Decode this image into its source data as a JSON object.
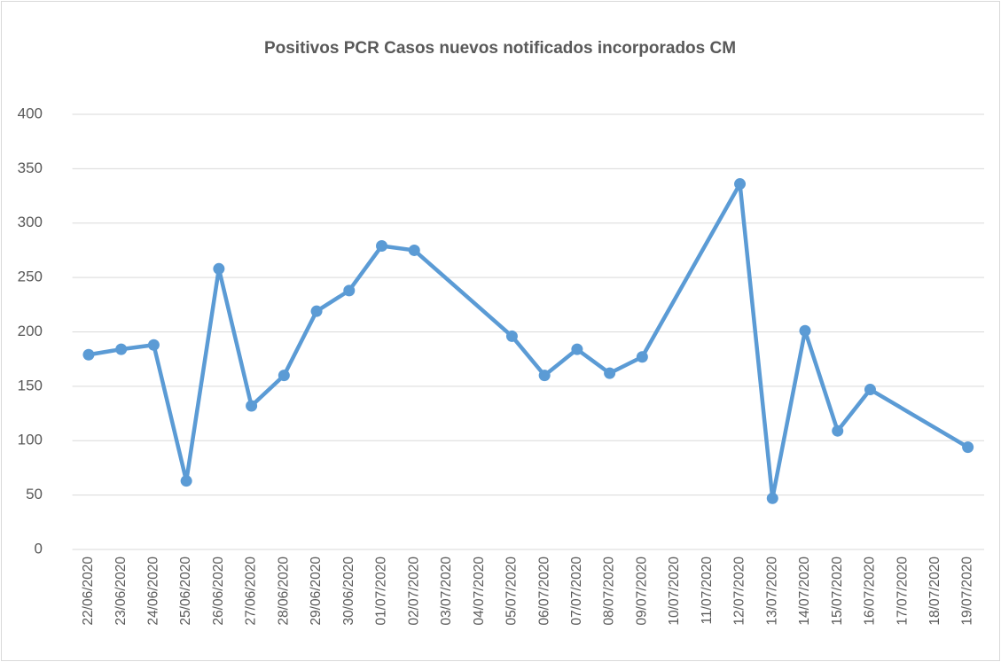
{
  "chart_data": {
    "type": "line",
    "title": "Positivos PCR Casos nuevos notificados incorporados CM",
    "categories": [
      "22/06/2020",
      "23/06/2020",
      "24/06/2020",
      "25/06/2020",
      "26/06/2020",
      "27/06/2020",
      "28/06/2020",
      "29/06/2020",
      "30/06/2020",
      "01/07/2020",
      "02/07/2020",
      "03/07/2020",
      "04/07/2020",
      "05/07/2020",
      "06/07/2020",
      "07/07/2020",
      "08/07/2020",
      "09/07/2020",
      "10/07/2020",
      "11/07/2020",
      "12/07/2020",
      "13/07/2020",
      "14/07/2020",
      "15/07/2020",
      "16/07/2020",
      "17/07/2020",
      "18/07/2020",
      "19/07/2020"
    ],
    "series": [
      {
        "name": "Positivos PCR",
        "color": "#5b9bd5",
        "values": [
          179,
          184,
          188,
          63,
          258,
          132,
          160,
          219,
          238,
          279,
          275,
          null,
          null,
          196,
          160,
          184,
          162,
          177,
          null,
          null,
          336,
          47,
          201,
          109,
          147,
          null,
          null,
          94
        ]
      }
    ],
    "connect_gaps": true,
    "ylim": [
      0,
      400
    ],
    "yticks": [
      0,
      50,
      100,
      150,
      200,
      250,
      300,
      350,
      400
    ],
    "grid": true
  }
}
